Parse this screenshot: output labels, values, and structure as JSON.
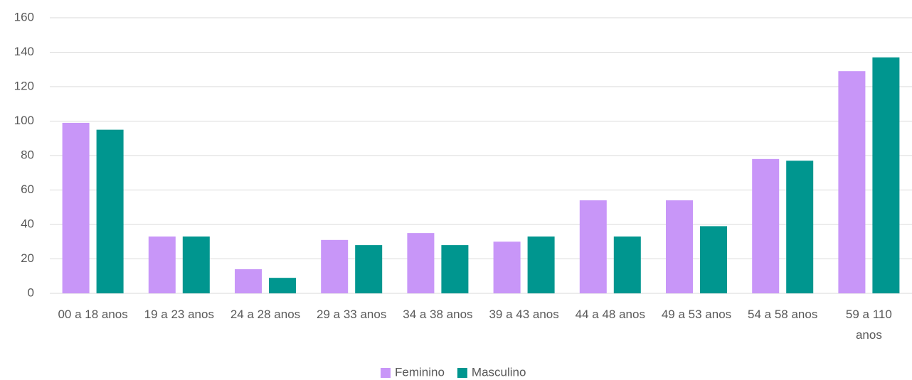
{
  "chart_data": {
    "type": "bar",
    "categories": [
      "00 a 18 anos",
      "19 a 23 anos",
      "24 a 28 anos",
      "29 a 33 anos",
      "34 a 38 anos",
      "39 a 43 anos",
      "44 a 48 anos",
      "49 a 53 anos",
      "54 a 58 anos",
      "59 a 110 anos"
    ],
    "series": [
      {
        "name": "Feminino",
        "color": "#c896f8",
        "values": [
          99,
          33,
          14,
          31,
          35,
          30,
          54,
          54,
          78,
          129
        ]
      },
      {
        "name": "Masculino",
        "color": "#00968f",
        "values": [
          95,
          33,
          9,
          28,
          28,
          33,
          33,
          39,
          77,
          137
        ]
      }
    ],
    "ylim": [
      0,
      160
    ],
    "yticks": [
      0,
      20,
      40,
      60,
      80,
      100,
      120,
      140,
      160
    ],
    "grid": true,
    "legend": "bottom"
  }
}
